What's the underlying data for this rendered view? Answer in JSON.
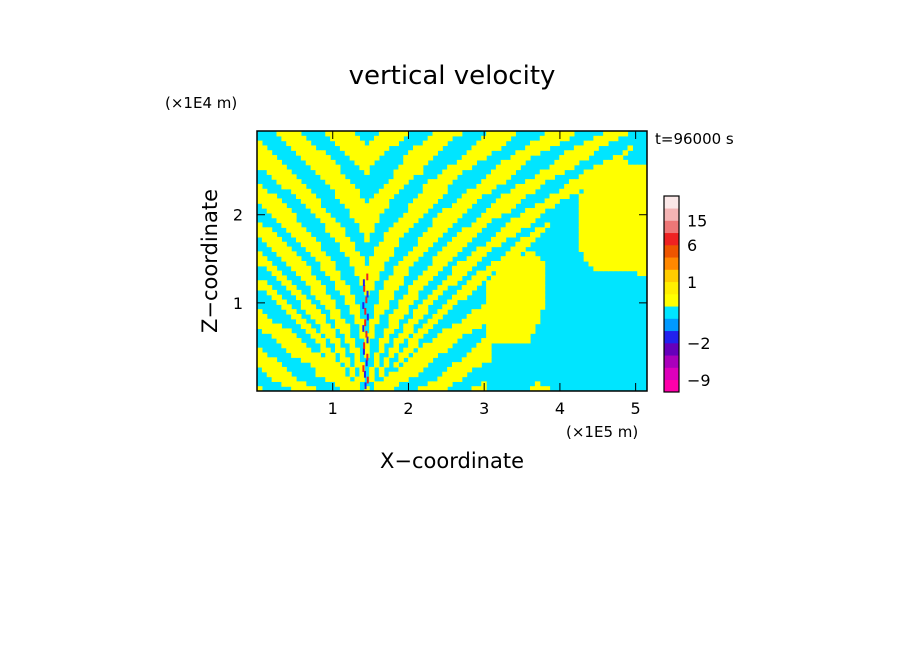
{
  "chart_data": {
    "type": "heatmap",
    "title": "vertical velocity",
    "xlabel": "X−coordinate",
    "ylabel": "Z−coordinate",
    "x_unit": "(×1E5 m)",
    "y_unit": "(×1E4 m)",
    "time_label": "t=96000 s",
    "xlim": [
      0,
      5.15
    ],
    "ylim": [
      0,
      2.95
    ],
    "x_ticks": [
      1,
      2,
      3,
      4,
      5
    ],
    "y_ticks": [
      1,
      2
    ],
    "colorbar": {
      "levels": [
        -12,
        -9,
        -6,
        -4,
        -2,
        -1,
        -0.5,
        0,
        0.5,
        1,
        2,
        4,
        6,
        10,
        15,
        20,
        30
      ],
      "colors": [
        "#ff00aa",
        "#dd00bb",
        "#aa00bb",
        "#6600bb",
        "#2222ee",
        "#0099ff",
        "#00e5ff",
        "#ffff00",
        "#ffee00",
        "#ffcc00",
        "#ff8800",
        "#ee5500",
        "#ee2222",
        "#ee7777",
        "#f4b4b4",
        "#fbe8e8"
      ],
      "tick_labels": [
        {
          "value": 15,
          "label": "15"
        },
        {
          "value": 6,
          "label": "6"
        },
        {
          "value": 1,
          "label": "1"
        },
        {
          "value": -2,
          "label": "−2"
        },
        {
          "value": -9,
          "label": "−9"
        }
      ]
    },
    "field_colors": {
      "positive": "#ffff00",
      "negative": "#00e5ff",
      "strong_positive": "#ee2222",
      "strong_negative": "#2222ee"
    }
  }
}
